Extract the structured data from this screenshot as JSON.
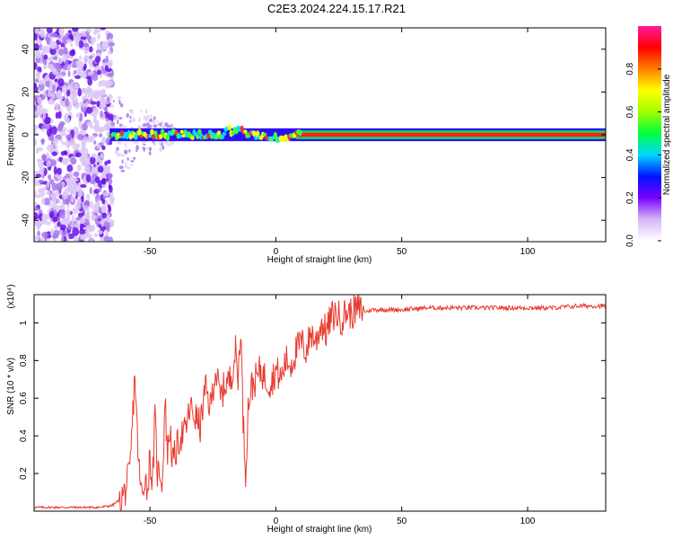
{
  "title": "C2E3.2024.224.15.17.R21",
  "chart_data": [
    {
      "type": "heatmap",
      "xlabel": "Height of straight line (km)",
      "ylabel": "Frequency (Hz)",
      "xlim": [
        -96,
        131
      ],
      "ylim": [
        -50,
        50
      ],
      "xticks": [
        -50,
        0,
        50,
        100
      ],
      "yticks": [
        -40,
        -20,
        0,
        20,
        40
      ],
      "grid": false,
      "ridge_frequency_hz": 0,
      "colorbar": {
        "label": "Normalized spectral amplitude",
        "range": [
          0,
          1
        ],
        "ticks": [
          0.0,
          0.2,
          0.4,
          0.6,
          0.8
        ],
        "tick_labels": [
          "0.0",
          "0.2",
          "0.4",
          "0.6",
          "0.8"
        ],
        "colors": [
          "#ffffff",
          "#d4b8f5",
          "#7b00ff",
          "#0014ff",
          "#00d8ff",
          "#00ff40",
          "#a0ff00",
          "#ffff00",
          "#ff8000",
          "#ff0000",
          "#ff1aa0"
        ]
      }
    },
    {
      "type": "line",
      "xlabel": "Height of straight line (km)",
      "ylabel": "SNR (10 * v/v)",
      "y_scale_label": "(x10⁴)",
      "xlim": [
        -96,
        131
      ],
      "ylim": [
        0,
        1.15
      ],
      "xticks": [
        -50,
        0,
        50,
        100
      ],
      "yticks": [
        0.2,
        0.4,
        0.6,
        0.8,
        1.0
      ],
      "ytick_labels": [
        "0.2",
        "0.4",
        "0.6",
        "0.8",
        "1"
      ],
      "grid": false,
      "series": [
        {
          "color": "#e8392e",
          "x": [
            -96,
            -80,
            -70,
            -65,
            -62,
            -60,
            -58,
            -57,
            -56,
            -55,
            -54,
            -53,
            -52,
            -51,
            -50,
            -49,
            -48,
            -47,
            -46,
            -45,
            -44,
            -43,
            -42,
            -41,
            -40,
            -39,
            -38,
            -36,
            -34,
            -32,
            -30,
            -28,
            -26,
            -24,
            -22,
            -20,
            -18,
            -16,
            -15,
            -14,
            -13,
            -12,
            -11,
            -10,
            -8,
            -6,
            -4,
            -2,
            0,
            2,
            4,
            6,
            8,
            10,
            12,
            14,
            16,
            18,
            20,
            22,
            24,
            26,
            28,
            30,
            32,
            34,
            36,
            38,
            40,
            45,
            50,
            60,
            70,
            80,
            90,
            100,
            110,
            120,
            131
          ],
          "y": [
            0.02,
            0.02,
            0.02,
            0.03,
            0.06,
            0.1,
            0.2,
            0.45,
            0.74,
            0.4,
            0.15,
            0.08,
            0.2,
            0.1,
            0.3,
            0.12,
            0.5,
            0.2,
            0.22,
            0.15,
            0.6,
            0.3,
            0.45,
            0.25,
            0.3,
            0.35,
            0.4,
            0.42,
            0.55,
            0.5,
            0.45,
            0.65,
            0.55,
            0.75,
            0.6,
            0.68,
            0.7,
            0.85,
            0.7,
            0.99,
            0.5,
            0.2,
            0.55,
            0.65,
            0.7,
            0.75,
            0.7,
            0.68,
            0.75,
            0.7,
            0.8,
            0.78,
            0.85,
            0.9,
            0.85,
            0.95,
            0.9,
            1.0,
            0.95,
            1.03,
            1.05,
            1.02,
            1.06,
            1.05,
            1.07,
            1.07,
            1.06,
            1.07,
            1.07,
            1.07,
            1.07,
            1.08,
            1.08,
            1.08,
            1.08,
            1.08,
            1.08,
            1.09,
            1.09
          ]
        }
      ]
    }
  ]
}
